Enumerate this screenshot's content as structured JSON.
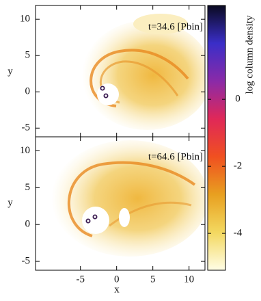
{
  "chart_data": {
    "type": "image",
    "x_label": "x",
    "y_label": "y",
    "xlim": [
      -11.2,
      12.2
    ],
    "xticks": [
      -5,
      0,
      5,
      10
    ],
    "ylim": [
      -6.2,
      11.9
    ],
    "yticks": [
      -5,
      0,
      5,
      10
    ],
    "panels": [
      {
        "annotation": "t=34.6 [Pbin]"
      },
      {
        "annotation": "t=64.6 [Pbin]"
      }
    ],
    "colorbar": {
      "label": "log column density",
      "clim": [
        -5.1,
        2.8
      ],
      "ticks": [
        -4,
        -2,
        0
      ],
      "colormap": [
        "#fffde6",
        "#f3d860",
        "#e8a020",
        "#f05020",
        "#e02858",
        "#8a2aa8",
        "#3a2ec8",
        "#0a0a20"
      ]
    }
  }
}
